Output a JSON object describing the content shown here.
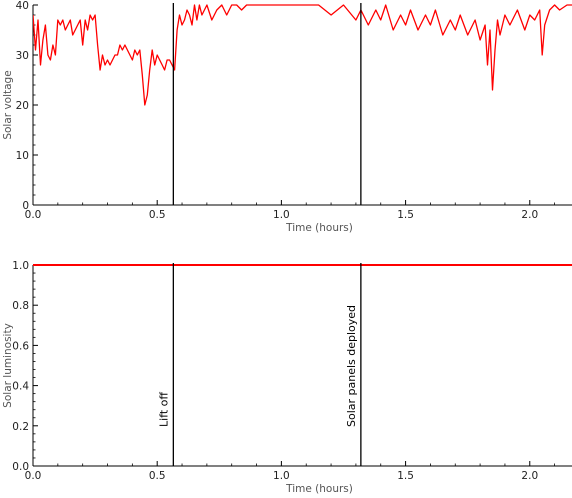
{
  "chart_data": [
    {
      "type": "line",
      "xlabel": "Time (hours)",
      "ylabel": "Solar voltage",
      "xlim": [
        0,
        2.17
      ],
      "ylim": [
        0,
        40
      ],
      "xticks": [
        0.0,
        0.5,
        1.0,
        1.5,
        2.0
      ],
      "xtick_labels": [
        "0.0",
        "0.5",
        "1.0",
        "1.5",
        "2.0"
      ],
      "yticks": [
        0,
        10,
        20,
        30,
        40
      ],
      "ytick_labels": [
        "0",
        "10",
        "20",
        "30",
        "40"
      ],
      "grid": false,
      "color": "#ff0000",
      "series": [
        {
          "x": [
            0.0,
            0.01,
            0.02,
            0.03,
            0.04,
            0.05,
            0.06,
            0.07,
            0.08,
            0.09,
            0.1,
            0.11,
            0.12,
            0.13,
            0.14,
            0.15,
            0.16,
            0.17,
            0.18,
            0.19,
            0.2,
            0.21,
            0.22,
            0.23,
            0.24,
            0.25,
            0.26,
            0.27,
            0.28,
            0.29,
            0.3,
            0.31,
            0.32,
            0.33,
            0.34,
            0.35,
            0.36,
            0.37,
            0.38,
            0.39,
            0.4,
            0.41,
            0.42,
            0.43,
            0.44,
            0.45,
            0.46,
            0.47,
            0.48,
            0.49,
            0.5,
            0.51,
            0.52,
            0.53,
            0.54,
            0.55,
            0.56,
            0.57,
            0.58,
            0.59,
            0.6,
            0.61,
            0.62,
            0.63,
            0.64,
            0.65,
            0.66,
            0.67,
            0.68,
            0.69,
            0.7,
            0.72,
            0.74,
            0.76,
            0.78,
            0.8,
            0.82,
            0.84,
            0.86,
            0.88,
            0.9,
            0.92,
            0.94,
            0.96,
            0.98,
            1.0,
            1.05,
            1.1,
            1.15,
            1.2,
            1.25,
            1.3,
            1.32,
            1.35,
            1.38,
            1.4,
            1.42,
            1.45,
            1.48,
            1.5,
            1.52,
            1.55,
            1.58,
            1.6,
            1.62,
            1.65,
            1.68,
            1.7,
            1.72,
            1.75,
            1.78,
            1.8,
            1.82,
            1.83,
            1.84,
            1.85,
            1.86,
            1.87,
            1.88,
            1.9,
            1.92,
            1.95,
            1.98,
            2.0,
            2.02,
            2.04,
            2.05,
            2.06,
            2.08,
            2.1,
            2.12,
            2.15,
            2.17
          ],
          "y": [
            38,
            31,
            37,
            28,
            33,
            36,
            30,
            29,
            32,
            30,
            37,
            36,
            37,
            35,
            36,
            37,
            34,
            35,
            36,
            37,
            32,
            37,
            35,
            38,
            37,
            38,
            32,
            27,
            30,
            28,
            29,
            28,
            29,
            30,
            30,
            32,
            31,
            32,
            31,
            30,
            29,
            31,
            30,
            31,
            26,
            20,
            22,
            27,
            31,
            28,
            30,
            29,
            28,
            27,
            29,
            29,
            28,
            27,
            35,
            38,
            36,
            37,
            39,
            38,
            36,
            40,
            37,
            40,
            38,
            39,
            40,
            37,
            39,
            40,
            38,
            40,
            40,
            39,
            40,
            40,
            40,
            40,
            40,
            40,
            40,
            40,
            40,
            40,
            40,
            38,
            40,
            37,
            39,
            36,
            39,
            37,
            40,
            35,
            38,
            36,
            39,
            35,
            38,
            36,
            39,
            34,
            37,
            35,
            38,
            34,
            37,
            33,
            36,
            28,
            35,
            23,
            31,
            37,
            34,
            38,
            36,
            39,
            35,
            38,
            37,
            39,
            30,
            36,
            39,
            40,
            39,
            40,
            40
          ]
        }
      ]
    },
    {
      "type": "line",
      "xlabel": "Time (hours)",
      "ylabel": "Solar luminosity",
      "xlim": [
        0,
        2.17
      ],
      "ylim": [
        0,
        1.0
      ],
      "xticks": [
        0.0,
        0.5,
        1.0,
        1.5,
        2.0
      ],
      "xtick_labels": [
        "0.0",
        "0.5",
        "1.0",
        "1.5",
        "2.0"
      ],
      "yticks": [
        0.0,
        0.2,
        0.4,
        0.6,
        0.8,
        1.0
      ],
      "ytick_labels": [
        "0.0",
        "0.2",
        "0.4",
        "0.6",
        "0.8",
        "1.0"
      ],
      "grid": false,
      "color": "#ff0000",
      "series": [
        {
          "x": [
            0.0,
            0.5,
            1.0,
            1.5,
            2.0,
            2.17
          ],
          "y": [
            1.0,
            1.0,
            1.0,
            1.0,
            1.0,
            1.0
          ]
        }
      ]
    }
  ],
  "events": [
    {
      "label": "Lift off",
      "x": 0.565
    },
    {
      "label": "Solar panels deployed",
      "x": 1.32
    }
  ]
}
